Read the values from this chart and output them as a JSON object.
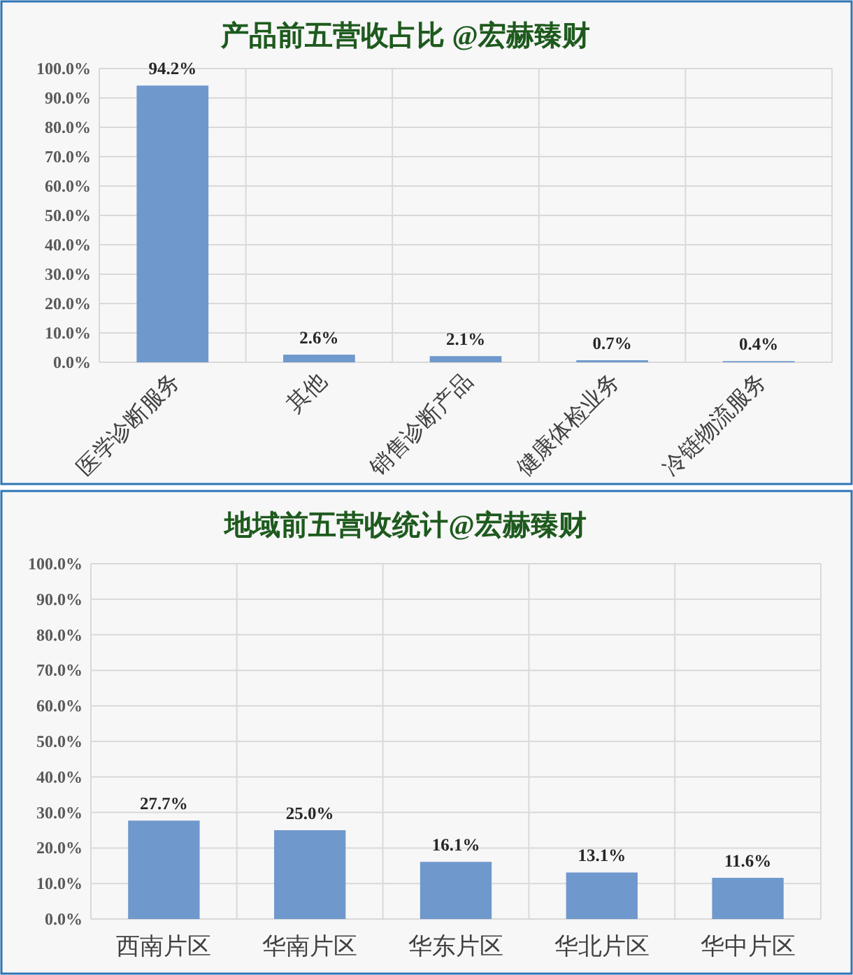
{
  "chart_data": [
    {
      "type": "bar",
      "title": "产品前五营收占比 @宏赫臻财",
      "categories": [
        "医学诊断服务",
        "其他",
        "销售诊断产品",
        "健康体检业务",
        "冷链物流服务"
      ],
      "values": [
        94.2,
        2.6,
        2.1,
        0.7,
        0.4
      ],
      "value_labels": [
        "94.2%",
        "2.6%",
        "2.1%",
        "0.7%",
        "0.4%"
      ],
      "color": "#6f98cc",
      "ylim": [
        0,
        100
      ],
      "yticks": [
        {
          "value": 0,
          "label": "0.0%"
        },
        {
          "value": 10,
          "label": "10.0%"
        },
        {
          "value": 20,
          "label": "20.0%"
        },
        {
          "value": 30,
          "label": "30.0%"
        },
        {
          "value": 40,
          "label": "40.0%"
        },
        {
          "value": 50,
          "label": "50.0%"
        },
        {
          "value": 60,
          "label": "60.0%"
        },
        {
          "value": 70,
          "label": "70.0%"
        },
        {
          "value": 80,
          "label": "80.0%"
        },
        {
          "value": 90,
          "label": "90.0%"
        },
        {
          "value": 100,
          "label": "100.0%"
        }
      ],
      "grid": true,
      "legend": false
    },
    {
      "type": "bar",
      "title": "地域前五营收统计@宏赫臻财",
      "categories": [
        "西南片区",
        "华南片区",
        "华东片区",
        "华北片区",
        "华中片区"
      ],
      "values": [
        27.7,
        25.0,
        16.1,
        13.1,
        11.6
      ],
      "value_labels": [
        "27.7%",
        "25.0%",
        "16.1%",
        "13.1%",
        "11.6%"
      ],
      "color": "#6f98cc",
      "ylim": [
        0,
        100
      ],
      "yticks": [
        {
          "value": 0,
          "label": "0.0%"
        },
        {
          "value": 10,
          "label": "10.0%"
        },
        {
          "value": 20,
          "label": "20.0%"
        },
        {
          "value": 30,
          "label": "30.0%"
        },
        {
          "value": 40,
          "label": "40.0%"
        },
        {
          "value": 50,
          "label": "50.0%"
        },
        {
          "value": 60,
          "label": "60.0%"
        },
        {
          "value": 70,
          "label": "70.0%"
        },
        {
          "value": 80,
          "label": "80.0%"
        },
        {
          "value": 90,
          "label": "90.0%"
        },
        {
          "value": 100,
          "label": "100.0%"
        }
      ],
      "grid": true,
      "legend": false
    }
  ]
}
